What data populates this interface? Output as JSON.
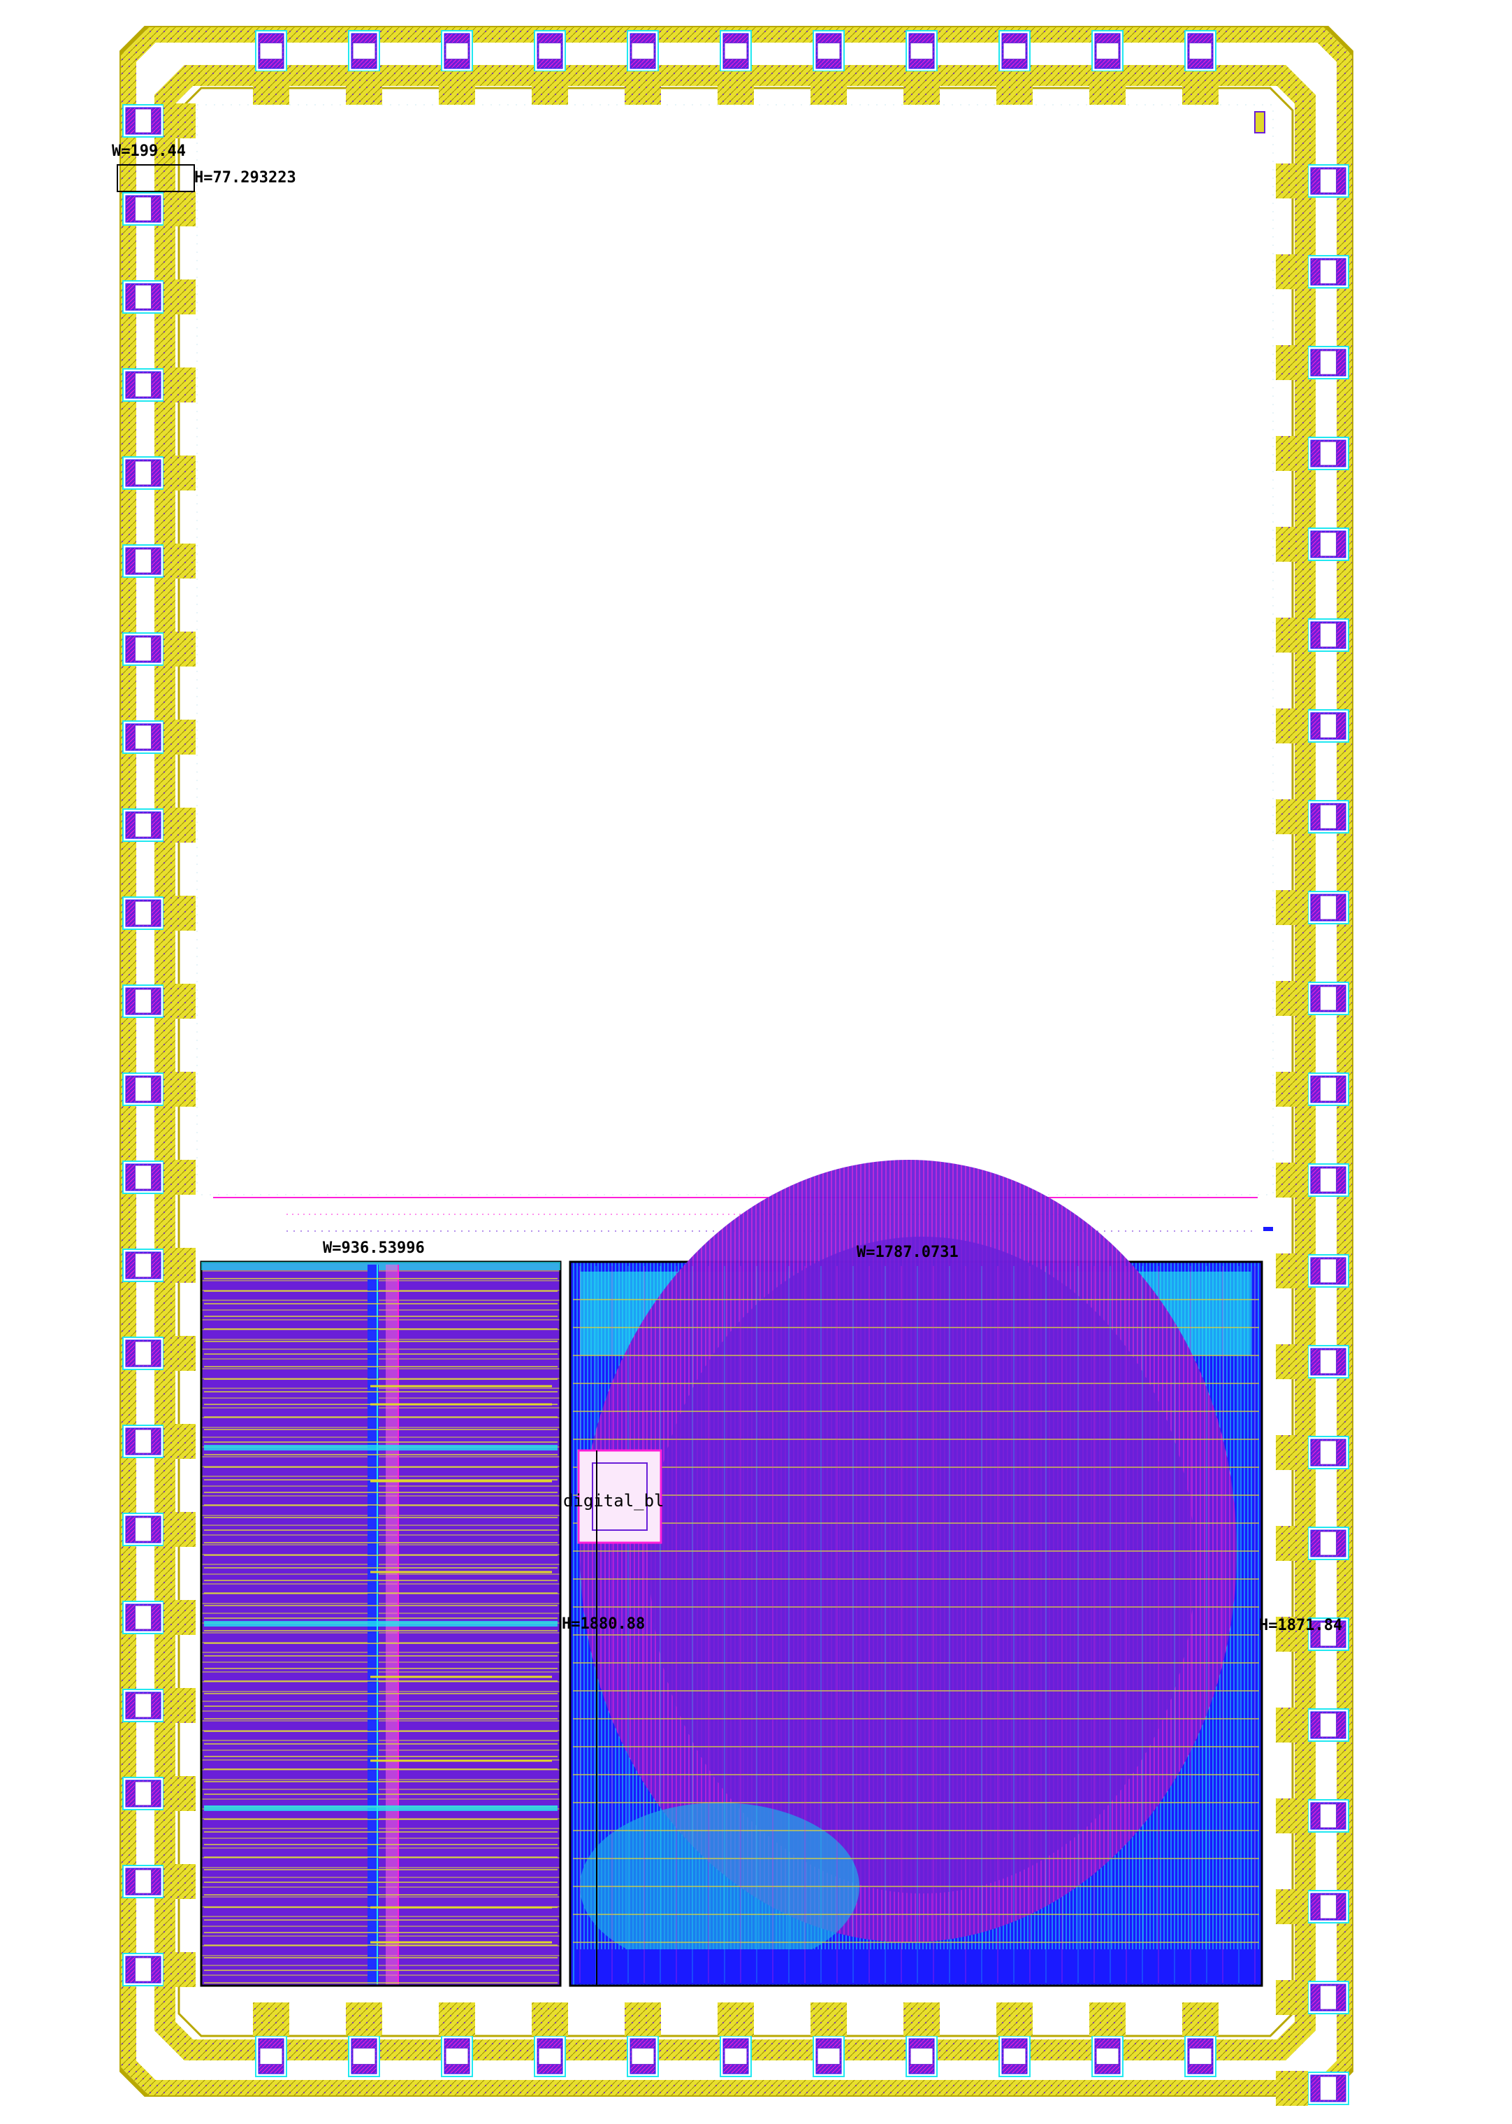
{
  "pad_frame_label": {
    "width": "W=199.44",
    "height": "H=77.293223"
  },
  "left_block": {
    "width": "W=936.53996"
  },
  "right_block": {
    "width": "W=1787.0731",
    "height": "H=1871.84",
    "inner_height": "H=1880.88",
    "module_label": "digital_bl"
  },
  "colors": {
    "pad_ring": "#e0d82a",
    "pad_ring_dark": "#b8a800",
    "metal_purple": "#6a1fd8",
    "metal_magenta": "#ff1fd8",
    "metal_cyan": "#20e8f0",
    "metal_blue": "#1a1aff",
    "outline": "#000000"
  }
}
